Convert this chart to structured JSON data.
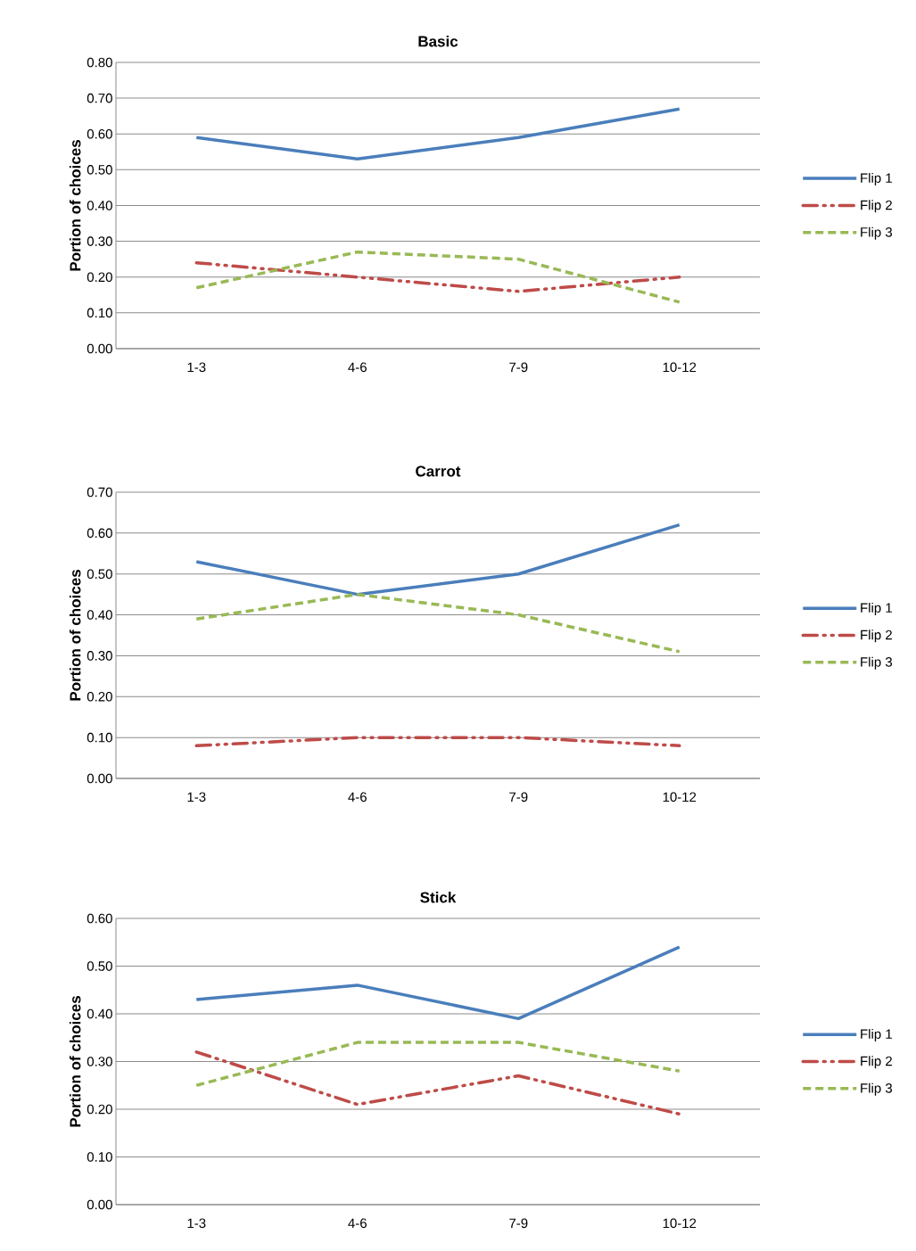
{
  "chart_data": [
    {
      "type": "line",
      "title": "Basic",
      "ylabel": "Portion of choices",
      "categories": [
        "1-3",
        "4-6",
        "7-9",
        "10-12"
      ],
      "ylim": [
        0,
        0.8
      ],
      "yticks": [
        {
          "value": 0,
          "label": "0.00"
        },
        {
          "value": 0.1,
          "label": "0.10"
        },
        {
          "value": 0.2,
          "label": "0.20"
        },
        {
          "value": 0.3,
          "label": "0.30"
        },
        {
          "value": 0.4,
          "label": "0.40"
        },
        {
          "value": 0.5,
          "label": "0.50"
        },
        {
          "value": 0.6,
          "label": "0.60"
        },
        {
          "value": 0.7,
          "label": "0.70"
        },
        {
          "value": 0.8,
          "label": "0.80"
        }
      ],
      "grid": "y",
      "legend": "right",
      "series": [
        {
          "name": "Flip 1",
          "color": "#4a7ebb",
          "line_style": "solid",
          "values": [
            0.59,
            0.53,
            0.59,
            0.67
          ]
        },
        {
          "name": "Flip 2",
          "color": "#be4b48",
          "line_style": "dashdot",
          "values": [
            0.24,
            0.2,
            0.16,
            0.2
          ]
        },
        {
          "name": "Flip 3",
          "color": "#98b954",
          "line_style": "dashed",
          "values": [
            0.17,
            0.27,
            0.25,
            0.13
          ]
        }
      ]
    },
    {
      "type": "line",
      "title": "Carrot",
      "ylabel": "Portion of choices",
      "categories": [
        "1-3",
        "4-6",
        "7-9",
        "10-12"
      ],
      "ylim": [
        0,
        0.7
      ],
      "yticks": [
        {
          "value": 0,
          "label": "0.00"
        },
        {
          "value": 0.1,
          "label": "0.10"
        },
        {
          "value": 0.2,
          "label": "0.20"
        },
        {
          "value": 0.3,
          "label": "0.30"
        },
        {
          "value": 0.4,
          "label": "0.40"
        },
        {
          "value": 0.5,
          "label": "0.50"
        },
        {
          "value": 0.6,
          "label": "0.60"
        },
        {
          "value": 0.7,
          "label": "0.70"
        }
      ],
      "grid": "y",
      "legend": "right",
      "series": [
        {
          "name": "Flip 1",
          "color": "#4a7ebb",
          "line_style": "solid",
          "values": [
            0.53,
            0.45,
            0.5,
            0.62
          ]
        },
        {
          "name": "Flip 2",
          "color": "#be4b48",
          "line_style": "dashdot",
          "values": [
            0.08,
            0.1,
            0.1,
            0.08
          ]
        },
        {
          "name": "Flip 3",
          "color": "#98b954",
          "line_style": "dashed",
          "values": [
            0.39,
            0.45,
            0.4,
            0.31
          ]
        }
      ]
    },
    {
      "type": "line",
      "title": "Stick",
      "ylabel": "Portion of choices",
      "categories": [
        "1-3",
        "4-6",
        "7-9",
        "10-12"
      ],
      "ylim": [
        0,
        0.6
      ],
      "yticks": [
        {
          "value": 0,
          "label": "0.00"
        },
        {
          "value": 0.1,
          "label": "0.10"
        },
        {
          "value": 0.2,
          "label": "0.20"
        },
        {
          "value": 0.3,
          "label": "0.30"
        },
        {
          "value": 0.4,
          "label": "0.40"
        },
        {
          "value": 0.5,
          "label": "0.50"
        },
        {
          "value": 0.6,
          "label": "0.60"
        }
      ],
      "grid": "y",
      "legend": "right",
      "series": [
        {
          "name": "Flip 1",
          "color": "#4a7ebb",
          "line_style": "solid",
          "values": [
            0.43,
            0.46,
            0.39,
            0.54
          ]
        },
        {
          "name": "Flip 2",
          "color": "#be4b48",
          "line_style": "dashdot",
          "values": [
            0.32,
            0.21,
            0.27,
            0.19
          ]
        },
        {
          "name": "Flip 3",
          "color": "#98b954",
          "line_style": "dashed",
          "values": [
            0.25,
            0.34,
            0.34,
            0.28
          ]
        }
      ]
    }
  ]
}
